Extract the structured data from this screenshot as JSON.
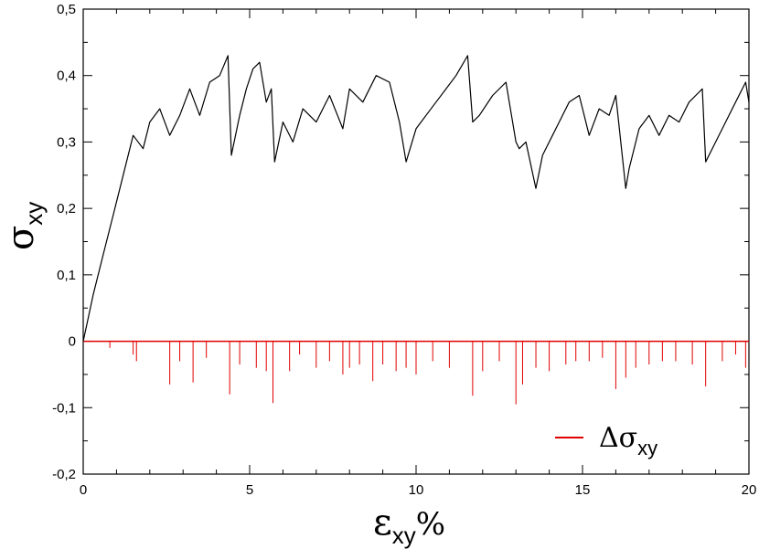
{
  "chart_data": {
    "type": "line",
    "xlabel": "ε",
    "xlabel_sub": "xy",
    "xlabel_suffix": "%",
    "ylabel": "σ",
    "ylabel_sub": "xy",
    "xlim": [
      0,
      20
    ],
    "ylim": [
      -0.2,
      0.5
    ],
    "x_ticks": [
      0,
      5,
      10,
      15,
      20
    ],
    "x_tick_labels": [
      "0",
      "5",
      "10",
      "15",
      "20"
    ],
    "y_ticks": [
      -0.2,
      -0.1,
      0,
      0.1,
      0.2,
      0.3,
      0.4,
      0.5
    ],
    "y_tick_labels": [
      "-0,2",
      "-0,1",
      "0",
      "0,1",
      "0,2",
      "0,3",
      "0,4",
      "0,5"
    ],
    "grid": false,
    "legend_position": "bottom-right",
    "series": [
      {
        "color": "#000000",
        "x": [
          0,
          0.3,
          0.6,
          0.9,
          1.2,
          1.5,
          1.8,
          2.0,
          2.3,
          2.6,
          2.9,
          3.2,
          3.5,
          3.8,
          4.1,
          4.35,
          4.45,
          4.7,
          4.9,
          5.1,
          5.3,
          5.5,
          5.65,
          5.75,
          6.0,
          6.3,
          6.6,
          7.0,
          7.4,
          7.8,
          8.0,
          8.4,
          8.8,
          9.2,
          9.5,
          9.7,
          10.0,
          10.3,
          10.6,
          10.9,
          11.2,
          11.55,
          11.7,
          11.9,
          12.3,
          12.7,
          13.0,
          13.1,
          13.3,
          13.6,
          13.8,
          14.1,
          14.3,
          14.6,
          14.9,
          15.2,
          15.5,
          15.8,
          16.0,
          16.3,
          16.4,
          16.7,
          17.0,
          17.3,
          17.6,
          17.9,
          18.2,
          18.6,
          18.7,
          19.0,
          19.3,
          19.6,
          19.9,
          20.0
        ],
        "values": [
          0.0,
          0.07,
          0.13,
          0.19,
          0.25,
          0.31,
          0.29,
          0.33,
          0.35,
          0.31,
          0.34,
          0.38,
          0.34,
          0.39,
          0.4,
          0.43,
          0.28,
          0.34,
          0.38,
          0.41,
          0.42,
          0.36,
          0.38,
          0.27,
          0.33,
          0.3,
          0.35,
          0.33,
          0.37,
          0.32,
          0.38,
          0.36,
          0.4,
          0.39,
          0.33,
          0.27,
          0.32,
          0.34,
          0.36,
          0.38,
          0.4,
          0.43,
          0.33,
          0.34,
          0.37,
          0.39,
          0.3,
          0.29,
          0.3,
          0.23,
          0.28,
          0.31,
          0.33,
          0.36,
          0.37,
          0.31,
          0.35,
          0.34,
          0.37,
          0.23,
          0.26,
          0.32,
          0.34,
          0.31,
          0.34,
          0.33,
          0.36,
          0.38,
          0.27,
          0.3,
          0.33,
          0.36,
          0.39,
          0.36
        ]
      },
      {
        "name": "Δσ",
        "name_sub": "xy",
        "color": "#e00000",
        "x": [
          0.8,
          1.5,
          1.6,
          2.6,
          2.9,
          3.3,
          3.7,
          4.4,
          4.7,
          5.2,
          5.5,
          5.7,
          6.2,
          6.5,
          7.0,
          7.4,
          7.8,
          8.0,
          8.3,
          8.7,
          9.0,
          9.4,
          9.7,
          10.0,
          10.5,
          11.0,
          11.7,
          12.0,
          12.5,
          13.0,
          13.2,
          13.6,
          14.0,
          14.5,
          14.8,
          15.2,
          15.6,
          16.0,
          16.3,
          16.6,
          17.0,
          17.4,
          17.8,
          18.3,
          18.7,
          19.2,
          19.6,
          19.9
        ],
        "values": [
          -0.01,
          -0.02,
          -0.03,
          -0.065,
          -0.03,
          -0.062,
          -0.025,
          -0.08,
          -0.035,
          -0.04,
          -0.045,
          -0.093,
          -0.045,
          -0.02,
          -0.04,
          -0.03,
          -0.05,
          -0.04,
          -0.035,
          -0.06,
          -0.035,
          -0.045,
          -0.04,
          -0.05,
          -0.03,
          -0.04,
          -0.082,
          -0.045,
          -0.03,
          -0.095,
          -0.065,
          -0.04,
          -0.045,
          -0.035,
          -0.03,
          -0.03,
          -0.025,
          -0.072,
          -0.055,
          -0.04,
          -0.035,
          -0.03,
          -0.03,
          -0.035,
          -0.068,
          -0.03,
          -0.02,
          -0.04
        ]
      }
    ]
  }
}
